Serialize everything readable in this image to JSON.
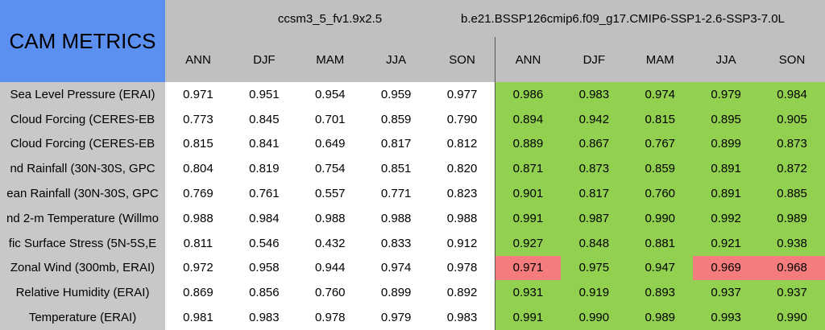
{
  "header": {
    "title": "CAM METRICS",
    "groups": [
      "ccsm3_5_fv1.9x2.5",
      "b.e21.BSSP126cmip6.f09_g17.CMIP6-SSP1-2.6-SSP3-7.0L"
    ],
    "columns": [
      "ANN",
      "DJF",
      "MAM",
      "JJA",
      "SON",
      "ANN",
      "DJF",
      "MAM",
      "JJA",
      "SON"
    ]
  },
  "colors": {
    "base": "#ffffff",
    "better": "#92d050",
    "worse": "#f47c7c"
  },
  "flagged": [
    [
      7,
      5
    ],
    [
      7,
      8
    ],
    [
      7,
      9
    ]
  ],
  "table": {
    "rows": [
      {
        "label": "Sea Level Pressure (ERAI)",
        "values": [
          "0.971",
          "0.951",
          "0.954",
          "0.959",
          "0.977",
          "0.986",
          "0.983",
          "0.974",
          "0.979",
          "0.984"
        ]
      },
      {
        "label": "Cloud Forcing (CERES-EB",
        "values": [
          "0.773",
          "0.845",
          "0.701",
          "0.859",
          "0.790",
          "0.894",
          "0.942",
          "0.815",
          "0.895",
          "0.905"
        ]
      },
      {
        "label": "Cloud Forcing (CERES-EB",
        "values": [
          "0.815",
          "0.841",
          "0.649",
          "0.817",
          "0.812",
          "0.889",
          "0.867",
          "0.767",
          "0.899",
          "0.873"
        ]
      },
      {
        "label": "nd Rainfall (30N-30S, GPC",
        "values": [
          "0.804",
          "0.819",
          "0.754",
          "0.851",
          "0.820",
          "0.871",
          "0.873",
          "0.859",
          "0.891",
          "0.872"
        ]
      },
      {
        "label": "ean Rainfall (30N-30S, GPC",
        "values": [
          "0.769",
          "0.761",
          "0.557",
          "0.771",
          "0.823",
          "0.901",
          "0.817",
          "0.760",
          "0.891",
          "0.885"
        ]
      },
      {
        "label": "nd 2-m Temperature (Willmo",
        "values": [
          "0.988",
          "0.984",
          "0.988",
          "0.988",
          "0.988",
          "0.991",
          "0.987",
          "0.990",
          "0.992",
          "0.989"
        ]
      },
      {
        "label": "fic Surface Stress (5N-5S,E",
        "values": [
          "0.811",
          "0.546",
          "0.432",
          "0.833",
          "0.912",
          "0.927",
          "0.848",
          "0.881",
          "0.921",
          "0.938"
        ]
      },
      {
        "label": "Zonal Wind (300mb, ERAI)",
        "values": [
          "0.972",
          "0.958",
          "0.944",
          "0.974",
          "0.978",
          "0.971",
          "0.975",
          "0.947",
          "0.969",
          "0.968"
        ]
      },
      {
        "label": "Relative Humidity (ERAI)",
        "values": [
          "0.869",
          "0.856",
          "0.760",
          "0.899",
          "0.892",
          "0.931",
          "0.919",
          "0.893",
          "0.937",
          "0.937"
        ]
      },
      {
        "label": "Temperature (ERAI)",
        "values": [
          "0.981",
          "0.983",
          "0.978",
          "0.979",
          "0.983",
          "0.991",
          "0.990",
          "0.989",
          "0.993",
          "0.990"
        ]
      }
    ]
  }
}
